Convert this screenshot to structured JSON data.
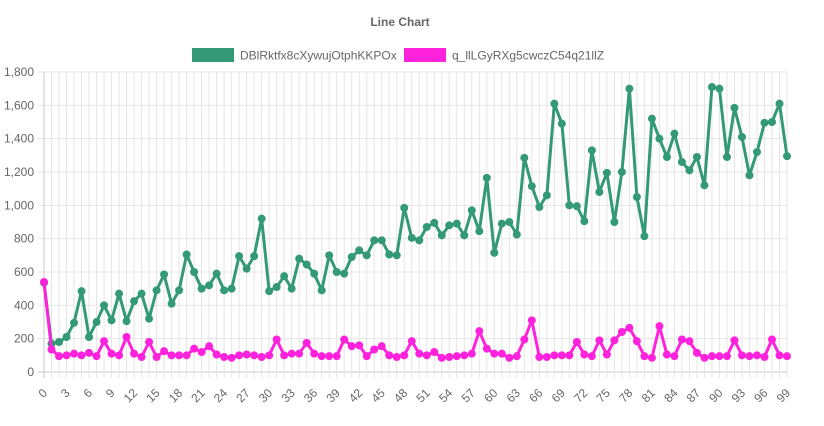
{
  "chart_data": {
    "type": "line",
    "title": "Line Chart",
    "xlabel": "",
    "ylabel": "",
    "ylim": [
      0,
      1800
    ],
    "y_ticks": [
      0,
      200,
      400,
      600,
      800,
      1000,
      1200,
      1400,
      1600,
      1800
    ],
    "y_tick_labels": [
      "0",
      "200",
      "400",
      "600",
      "800",
      "1,000",
      "1,200",
      "1,400",
      "1,600",
      "1,800"
    ],
    "x_tick_labels": [
      "0",
      "3",
      "6",
      "9",
      "12",
      "15",
      "18",
      "21",
      "24",
      "27",
      "30",
      "33",
      "36",
      "39",
      "42",
      "45",
      "48",
      "51",
      "54",
      "57",
      "60",
      "63",
      "66",
      "69",
      "72",
      "75",
      "78",
      "81",
      "84",
      "87",
      "90",
      "93",
      "96",
      "99"
    ],
    "grid": true,
    "legend_position": "top",
    "series": [
      {
        "name": "DBlRktfx8cXywujOtphKKPOx",
        "color": "#339977",
        "values": [
          535,
          170,
          180,
          210,
          295,
          485,
          210,
          300,
          400,
          310,
          470,
          305,
          425,
          470,
          320,
          490,
          585,
          410,
          490,
          705,
          600,
          500,
          520,
          590,
          490,
          500,
          695,
          620,
          695,
          920,
          485,
          510,
          575,
          500,
          680,
          645,
          590,
          490,
          700,
          600,
          590,
          690,
          730,
          700,
          790,
          790,
          705,
          700,
          985,
          805,
          790,
          870,
          895,
          820,
          880,
          890,
          820,
          970,
          845,
          1165,
          715,
          890,
          900,
          825,
          1285,
          1115,
          990,
          1060,
          1610,
          1490,
          1000,
          995,
          905,
          1330,
          1080,
          1195,
          900,
          1200,
          1700,
          1050,
          815,
          1520,
          1400,
          1290,
          1430,
          1260,
          1210,
          1290,
          1120,
          1710,
          1700,
          1290,
          1585,
          1410,
          1180,
          1320,
          1495,
          1500,
          1610,
          1295
        ]
      },
      {
        "name": "q_llLGyRXg5cwczC54q21llZ",
        "color": "#ff22dd",
        "values": [
          540,
          135,
          95,
          100,
          110,
          100,
          115,
          95,
          185,
          110,
          100,
          210,
          110,
          90,
          180,
          90,
          125,
          100,
          100,
          100,
          140,
          120,
          155,
          105,
          90,
          85,
          100,
          105,
          100,
          90,
          100,
          195,
          100,
          110,
          110,
          175,
          110,
          95,
          95,
          95,
          195,
          155,
          160,
          95,
          135,
          155,
          100,
          90,
          100,
          185,
          110,
          100,
          120,
          85,
          90,
          95,
          100,
          110,
          245,
          140,
          110,
          110,
          85,
          95,
          195,
          310,
          90,
          90,
          100,
          100,
          100,
          180,
          105,
          95,
          190,
          105,
          190,
          240,
          265,
          185,
          95,
          85,
          275,
          105,
          95,
          195,
          185,
          115,
          85,
          95,
          95,
          95,
          190,
          100,
          95,
          100,
          90,
          195,
          100,
          95
        ]
      }
    ]
  }
}
